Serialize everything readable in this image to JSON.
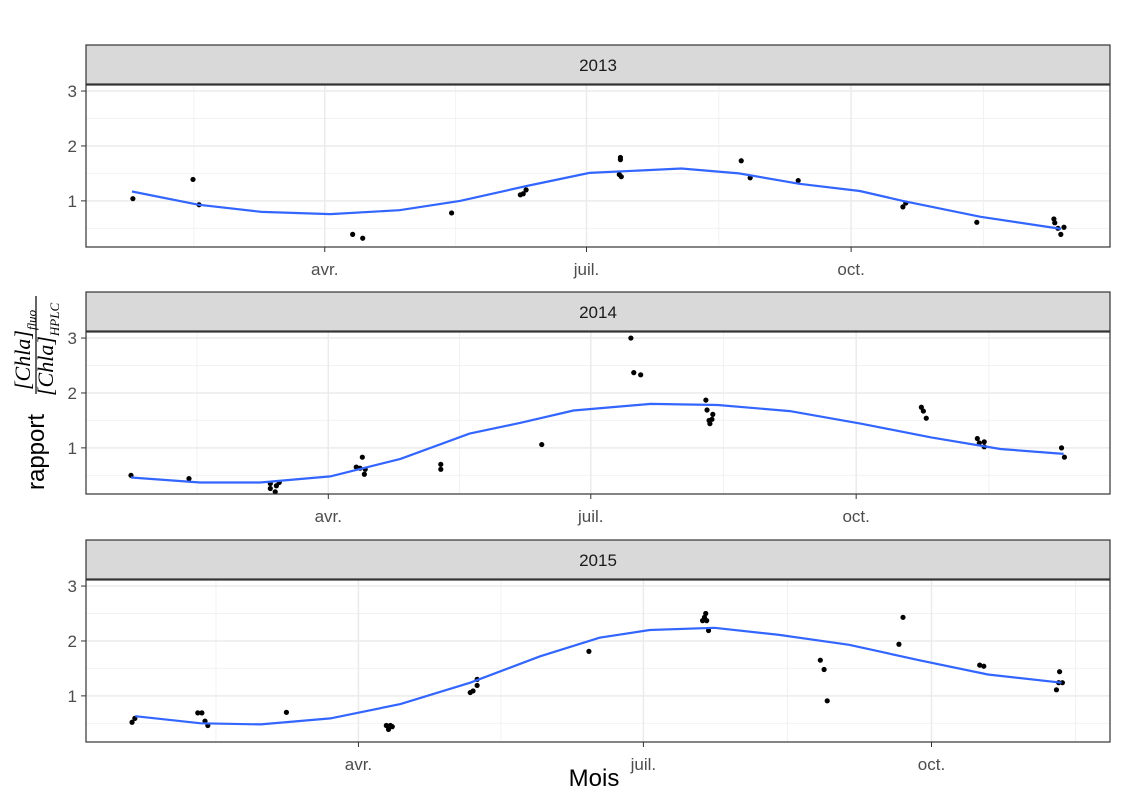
{
  "xlabel": "Mois",
  "ylabel": {
    "text": "rapport",
    "numerator": "[Chla]",
    "numerator_sub": "fluo",
    "denominator": "[Chla]",
    "denominator_sub": "HPLC"
  },
  "chart_data": [
    {
      "type": "scatter",
      "title": "2013",
      "color": "#000000",
      "grid": true,
      "xlim": [
        8,
        364
      ],
      "xticks": [
        {
          "value": 91,
          "label": "avr."
        },
        {
          "value": 182,
          "label": "juil."
        },
        {
          "value": 274,
          "label": "oct."
        }
      ],
      "ylim": [
        0.16,
        3.11
      ],
      "yticks": [
        1,
        2,
        3
      ],
      "x": [
        24.3,
        45.2,
        47.3,
        100.7,
        104.2,
        135.1,
        159,
        160,
        161,
        193.8,
        193.8,
        193.4,
        194.1,
        235.8,
        238.9,
        255.6,
        292,
        293,
        317.7,
        344.5,
        344.8,
        345.9,
        346.9,
        348
      ],
      "values": [
        1.04,
        1.39,
        0.93,
        0.39,
        0.32,
        0.78,
        1.11,
        1.13,
        1.2,
        1.79,
        1.75,
        1.48,
        1.44,
        1.73,
        1.42,
        1.37,
        0.89,
        0.96,
        0.61,
        0.67,
        0.6,
        0.5,
        0.39,
        0.52
      ],
      "trend": {
        "color": "#3366ff",
        "x": [
          24,
          47,
          69,
          93,
          117,
          138,
          162,
          183,
          215,
          235,
          256,
          277,
          292,
          319,
          347
        ],
        "values": [
          1.17,
          0.93,
          0.8,
          0.76,
          0.83,
          1.0,
          1.28,
          1.51,
          1.59,
          1.5,
          1.31,
          1.18,
          1.0,
          0.71,
          0.49
        ]
      }
    },
    {
      "type": "scatter",
      "title": "2014",
      "color": "#000000",
      "grid": true,
      "xlim": [
        7,
        362
      ],
      "xticks": [
        {
          "value": 91,
          "label": "avr."
        },
        {
          "value": 182,
          "label": "juil."
        },
        {
          "value": 274,
          "label": "oct."
        }
      ],
      "ylim": [
        0.16,
        3.11
      ],
      "yticks": [
        1,
        2,
        3
      ],
      "x": [
        22.6,
        42.7,
        70.9,
        70.9,
        72.6,
        73,
        74,
        100.7,
        102,
        102.8,
        103.5,
        103.8,
        130,
        130,
        165,
        195.9,
        196.9,
        199.3,
        221.9,
        222.3,
        223,
        223.3,
        224.3,
        224,
        296.6,
        297.3,
        298.3,
        316,
        316.7,
        318.4,
        318.4,
        345.2,
        346.2
      ],
      "values": [
        0.5,
        0.44,
        0.26,
        0.35,
        0.2,
        0.31,
        0.37,
        0.65,
        0.63,
        0.83,
        0.52,
        0.61,
        0.7,
        0.61,
        1.06,
        3.0,
        2.37,
        2.33,
        1.87,
        1.69,
        1.5,
        1.44,
        1.61,
        1.52,
        1.74,
        1.67,
        1.54,
        1.17,
        1.09,
        1.11,
        1.02,
        1.0,
        0.83
      ],
      "trend": {
        "color": "#3366ff",
        "x": [
          22.6,
          46.6,
          67.4,
          91.7,
          116,
          140,
          158,
          176,
          202.8,
          226,
          251,
          275.7,
          300,
          324,
          345.9
        ],
        "values": [
          0.46,
          0.37,
          0.37,
          0.48,
          0.8,
          1.26,
          1.46,
          1.68,
          1.8,
          1.78,
          1.67,
          1.44,
          1.19,
          0.98,
          0.89
        ]
      }
    },
    {
      "type": "scatter",
      "title": "2015",
      "color": "#000000",
      "grid": true,
      "xlim": [
        4,
        331
      ],
      "xticks": [
        {
          "value": 91,
          "label": "avr."
        },
        {
          "value": 182,
          "label": "juil."
        },
        {
          "value": 274,
          "label": "oct."
        }
      ],
      "ylim": [
        0.16,
        3.11
      ],
      "yticks": [
        1,
        2,
        3
      ],
      "x": [
        18.7,
        19.6,
        39.7,
        41,
        42,
        42.9,
        68,
        99.9,
        100.6,
        101.2,
        101.8,
        126.7,
        127.6,
        128.9,
        128.9,
        164.6,
        200.9,
        201.5,
        201.9,
        202.2,
        202.8,
        238.5,
        239.7,
        240.7,
        263.6,
        264.9,
        289.4,
        290.7,
        313.9,
        314.6,
        314.9,
        315.8
      ],
      "values": [
        0.52,
        0.59,
        0.69,
        0.69,
        0.54,
        0.46,
        0.7,
        0.46,
        0.39,
        0.46,
        0.44,
        1.06,
        1.09,
        1.3,
        1.19,
        1.81,
        2.37,
        2.43,
        2.5,
        2.37,
        2.19,
        1.65,
        1.48,
        0.91,
        1.94,
        2.43,
        1.56,
        1.54,
        1.11,
        1.24,
        1.44,
        1.24
      ],
      "trend": {
        "color": "#3366ff",
        "x": [
          19.7,
          40.7,
          59.8,
          82,
          104.4,
          126.7,
          149,
          168,
          184,
          204.7,
          225.4,
          247.7,
          270,
          292,
          315.5
        ],
        "values": [
          0.63,
          0.5,
          0.48,
          0.59,
          0.85,
          1.24,
          1.72,
          2.06,
          2.2,
          2.24,
          2.11,
          1.93,
          1.65,
          1.39,
          1.24
        ]
      }
    }
  ]
}
